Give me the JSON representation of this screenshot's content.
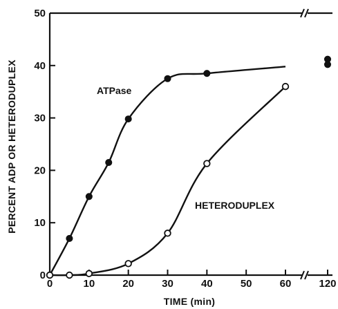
{
  "chart_data": {
    "type": "line",
    "xlabel": "TIME (min)",
    "ylabel": "PERCENT ADP OR HETERODUPLEX",
    "xlim": [
      0,
      120
    ],
    "ylim": [
      0,
      50
    ],
    "x_axis_break": [
      60,
      120
    ],
    "x_ticks": [
      0,
      10,
      20,
      30,
      40,
      50,
      60,
      120
    ],
    "y_ticks": [
      0,
      10,
      20,
      30,
      40,
      50
    ],
    "grid": false,
    "series": [
      {
        "name": "ATPase",
        "marker": "filled-circle",
        "color": "#111111",
        "points": [
          {
            "x": 0,
            "y": 0
          },
          {
            "x": 5,
            "y": 7
          },
          {
            "x": 10,
            "y": 15
          },
          {
            "x": 15,
            "y": 21.5
          },
          {
            "x": 20,
            "y": 29.8
          },
          {
            "x": 30,
            "y": 37.5
          },
          {
            "x": 40,
            "y": 38.5
          },
          {
            "x": 120,
            "y": 41.2
          },
          {
            "x": 120,
            "y": 40.2
          }
        ]
      },
      {
        "name": "HETERODUPLEX",
        "marker": "open-circle",
        "color": "#111111",
        "points": [
          {
            "x": 0,
            "y": 0
          },
          {
            "x": 5,
            "y": 0
          },
          {
            "x": 10,
            "y": 0.3
          },
          {
            "x": 20,
            "y": 2.2
          },
          {
            "x": 30,
            "y": 8
          },
          {
            "x": 40,
            "y": 21.3
          },
          {
            "x": 60,
            "y": 36
          }
        ]
      }
    ]
  }
}
